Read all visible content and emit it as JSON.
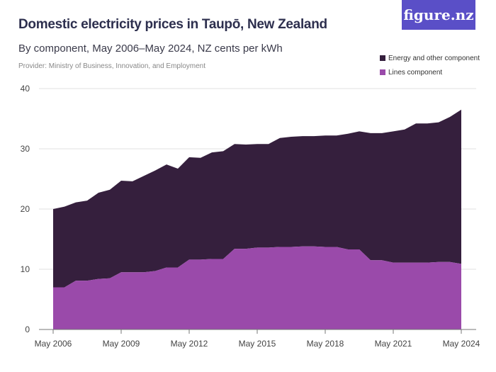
{
  "header": {
    "title": "Domestic electricity prices in Taupō, New Zealand",
    "subtitle": "By component, May 2006–May 2024, NZ cents per kWh",
    "provider": "Provider: Ministry of Business, Innovation, and Employment",
    "logo": "figure.nz"
  },
  "colors": {
    "energy": "#351f3d",
    "lines": "#9a4aaa",
    "grid": "#e2e2e2"
  },
  "chart_data": {
    "type": "area",
    "stacked": true,
    "title": "Domestic electricity prices in Taupō, New Zealand",
    "ylabel": "NZ cents per kWh",
    "ylim": [
      0,
      40
    ],
    "yticks": [
      0,
      10,
      20,
      30,
      40
    ],
    "xlim": [
      2006,
      2024
    ],
    "xticks": [
      {
        "v": 2006,
        "label": "May 2006"
      },
      {
        "v": 2009,
        "label": "May 2009"
      },
      {
        "v": 2012,
        "label": "May 2012"
      },
      {
        "v": 2015,
        "label": "May 2015"
      },
      {
        "v": 2018,
        "label": "May 2018"
      },
      {
        "v": 2021,
        "label": "May 2021"
      },
      {
        "v": 2024,
        "label": "May 2024"
      }
    ],
    "legend_position": "top-right",
    "x": [
      2006,
      2006.5,
      2007,
      2007.5,
      2008,
      2008.5,
      2009,
      2009.5,
      2010,
      2010.5,
      2011,
      2011.5,
      2012,
      2012.5,
      2013,
      2013.5,
      2014,
      2014.5,
      2015,
      2015.5,
      2016,
      2016.5,
      2017,
      2017.5,
      2018,
      2018.5,
      2019,
      2019.5,
      2020,
      2020.5,
      2021,
      2021.5,
      2022,
      2022.5,
      2023,
      2023.5,
      2024
    ],
    "series": [
      {
        "name": "Lines component",
        "values": [
          7.0,
          7.0,
          8.1,
          8.1,
          8.4,
          8.5,
          9.5,
          9.5,
          9.5,
          9.7,
          10.3,
          10.3,
          11.6,
          11.6,
          11.7,
          11.7,
          13.4,
          13.4,
          13.6,
          13.6,
          13.7,
          13.7,
          13.8,
          13.8,
          13.7,
          13.7,
          13.3,
          13.3,
          11.5,
          11.5,
          11.1,
          11.1,
          11.1,
          11.1,
          11.2,
          11.2,
          10.9
        ]
      },
      {
        "name": "Energy and other component",
        "values": [
          13.0,
          13.4,
          13.0,
          13.3,
          14.3,
          14.7,
          15.2,
          15.1,
          16.0,
          16.7,
          17.1,
          16.4,
          17.0,
          16.9,
          17.7,
          17.9,
          17.4,
          17.3,
          17.2,
          17.2,
          18.1,
          18.3,
          18.3,
          18.3,
          18.5,
          18.5,
          19.2,
          19.6,
          21.1,
          21.1,
          21.8,
          22.1,
          23.1,
          23.1,
          23.2,
          24.1,
          25.6
        ]
      }
    ]
  }
}
